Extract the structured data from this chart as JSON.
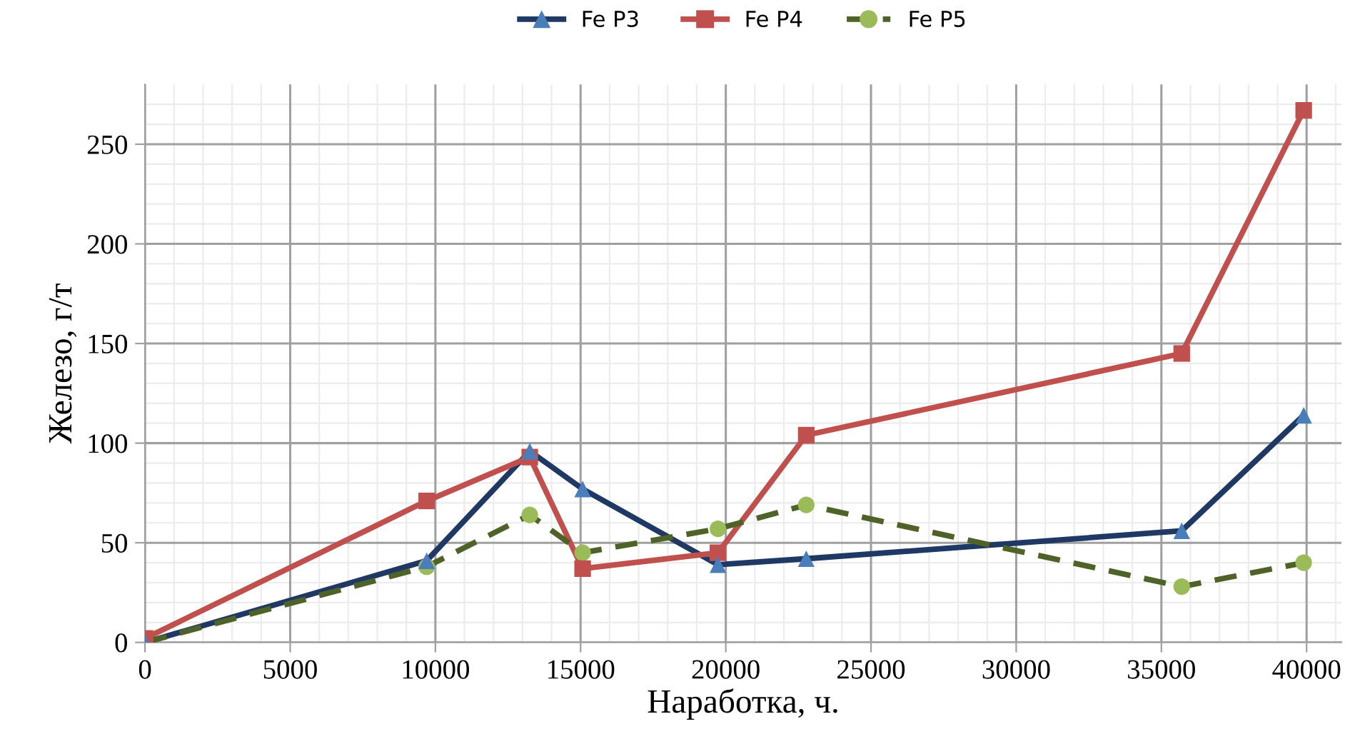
{
  "chart_data": {
    "type": "line",
    "xlabel": "Наработка, ч.",
    "ylabel": "Железо, г/т",
    "xlim": [
      0,
      41200
    ],
    "xticks": [
      0,
      5000,
      10000,
      15000,
      20000,
      25000,
      30000,
      35000,
      40000
    ],
    "ylim": [
      0,
      280
    ],
    "yticks": [
      0,
      50,
      100,
      150,
      200,
      250
    ],
    "grid": true,
    "legend": "top",
    "series": [
      {
        "name": "Fe P3",
        "color": "#1f3864",
        "colors": [
          "#4a7ebb",
          "#4a7ebb",
          "#4a7ebb",
          "#4a7ebb",
          "#4a7ebb",
          "#4a7ebb",
          "#4a7ebb",
          "#4a7ebb"
        ],
        "marker": "triangle",
        "line_style": "solid",
        "x": [
          0,
          9700,
          13250,
          15070,
          19730,
          22770,
          35700,
          39900
        ],
        "values": [
          0,
          41,
          96,
          77,
          39,
          42,
          56,
          114
        ]
      },
      {
        "name": "Fe P4",
        "color": "#c0504d",
        "colors": [
          "#c0504d",
          "#c0504d",
          "#c0504d",
          "#c0504d",
          "#c0504d",
          "#c0504d",
          "#c0504d",
          "#c0504d"
        ],
        "marker": "square",
        "line_style": "solid",
        "x": [
          0,
          9700,
          13250,
          15070,
          19730,
          22770,
          35700,
          39900
        ],
        "values": [
          2,
          71,
          93,
          37,
          45,
          104,
          145,
          267
        ]
      },
      {
        "name": "Fe P5",
        "color": "#4f6228",
        "colors": [
          "#9bbb59",
          "#9bbb59",
          "#9bbb59",
          "#9bbb59",
          "#9bbb59",
          "#9bbb59",
          "#9bbb59",
          "#9bbb59"
        ],
        "marker": "circle",
        "line_style": "dashed",
        "x": [
          0,
          9700,
          13250,
          15070,
          19730,
          22770,
          35700,
          39900
        ],
        "values": [
          0,
          38,
          64,
          45,
          57,
          69,
          28,
          40
        ]
      }
    ]
  }
}
